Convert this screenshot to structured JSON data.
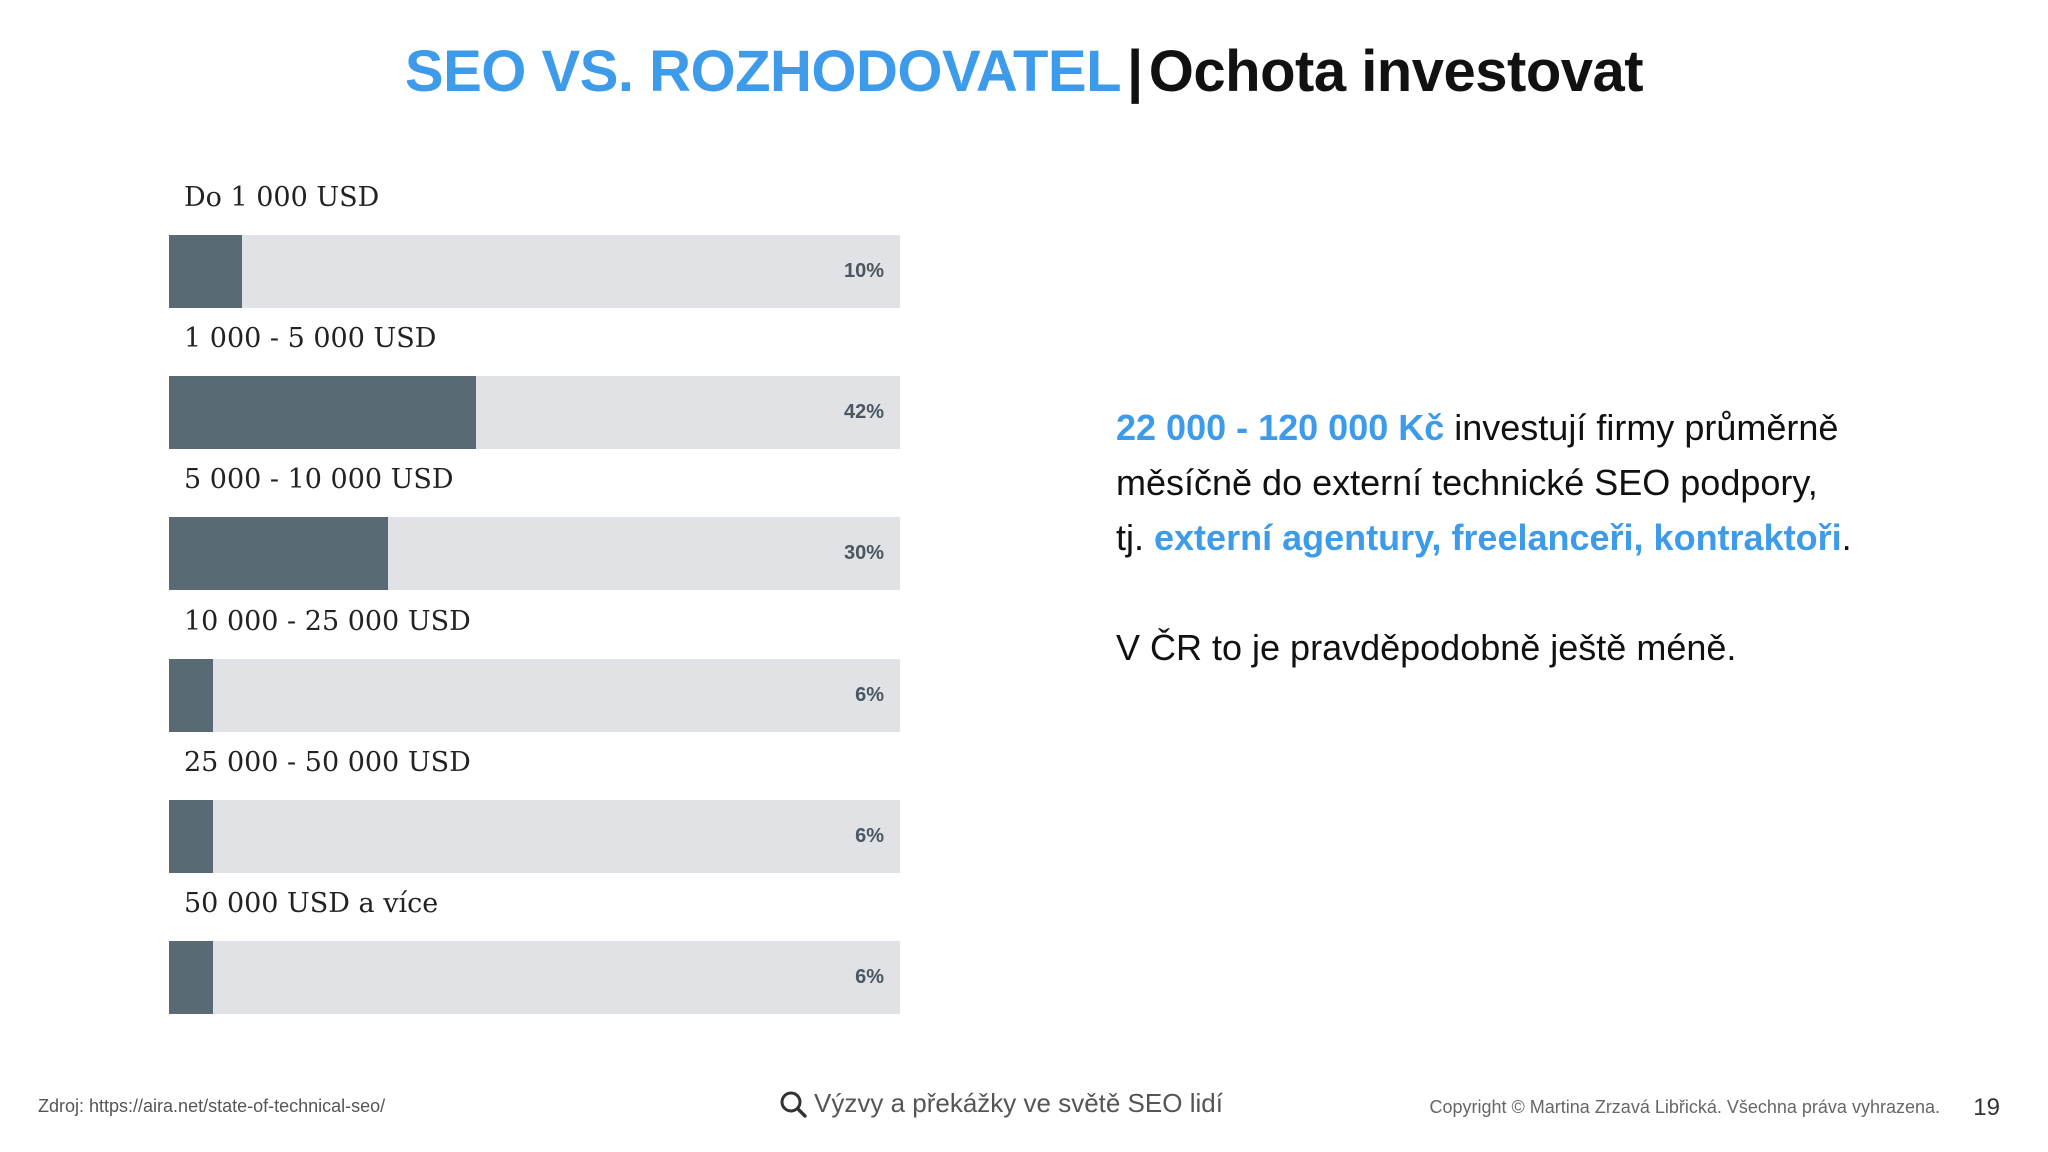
{
  "slide": {
    "title_accent": "SEO VS. ROZHODOVATEL",
    "title_sep": "|",
    "title_rest": "Ochota investovat",
    "page_number": "19"
  },
  "chart_data": {
    "type": "bar",
    "orientation": "horizontal",
    "categories": [
      "Do 1 000 USD",
      "1 000 - 5 000 USD",
      "5 000 - 10 000 USD",
      "10 000 - 25 000 USD",
      "25 000 - 50 000 USD",
      "50 000 USD a více"
    ],
    "values": [
      10,
      42,
      30,
      6,
      6,
      6
    ],
    "value_labels": [
      "10%",
      "42%",
      "30%",
      "6%",
      "6%",
      "6%"
    ],
    "xlim": [
      0,
      100
    ],
    "unit": "%",
    "colors": {
      "bar": "#596a75",
      "track": "#e1e2e5"
    }
  },
  "text_block": {
    "line1_blue": "22 000 - 120 000 Kč",
    "line1_rest": " investují firmy průměrně",
    "line2": "měsíčně do externí technické SEO podpory,",
    "line3_pre": "tj. ",
    "line3_blue": "externí agentury, freelanceři, kontraktoři",
    "line3_post": ".",
    "line4": "V ČR to je pravděpodobně ještě méně."
  },
  "footer": {
    "source": "Zdroj: https://aira.net/state-of-technical-seo/",
    "center_text": "Výzvy a překážky ve světě SEO lidí",
    "center_icon": "search-icon",
    "copyright": "Copyright © Martina Zrzavá Libřická. Všechna práva vyhrazena."
  },
  "colors": {
    "accent": "#3d9be9",
    "text": "#111111"
  }
}
